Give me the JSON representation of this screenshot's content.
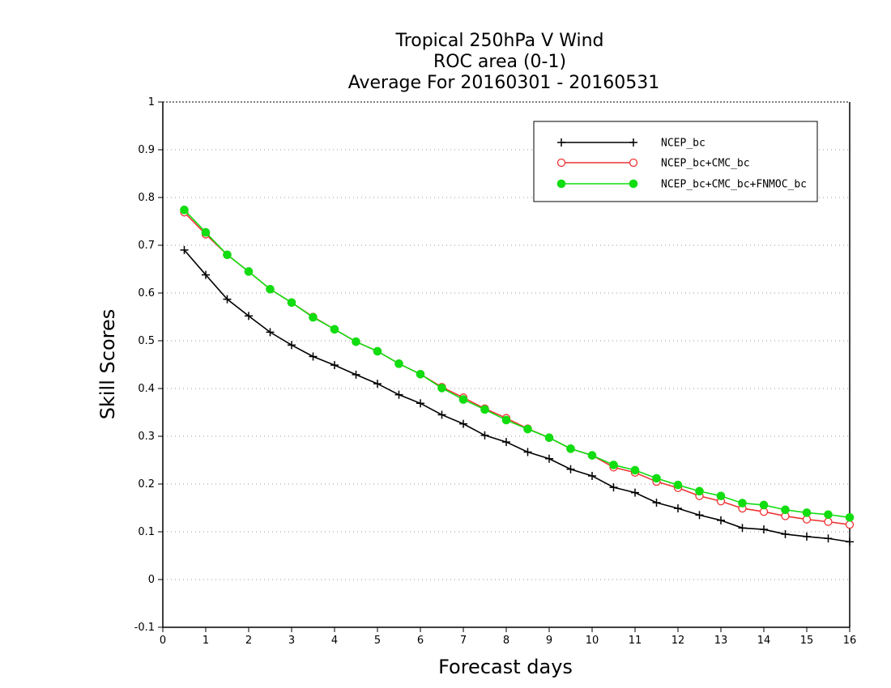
{
  "chart_data": {
    "type": "line",
    "title_lines": [
      "Tropical 250hPa V Wind",
      "ROC area (0-1)",
      "Average For 20160301 - 20160531"
    ],
    "xlabel": "Forecast days",
    "ylabel": "Skill Scores",
    "xlim": [
      0,
      16
    ],
    "ylim": [
      -0.1,
      1
    ],
    "x_ticks": [
      0,
      1,
      2,
      3,
      4,
      5,
      6,
      7,
      8,
      9,
      10,
      11,
      12,
      13,
      14,
      15,
      16
    ],
    "y_ticks": [
      -0.1,
      0,
      0.1,
      0.2,
      0.3,
      0.4,
      0.5,
      0.6,
      0.7,
      0.8,
      0.9,
      1
    ],
    "y_tick_labels": [
      "-0.1",
      "0",
      "0.1",
      "0.2",
      "0.3",
      "0.4",
      "0.5",
      "0.6",
      "0.7",
      "0.8",
      "0.9",
      "1"
    ],
    "grid": "horizontal dotted",
    "legend_position": "top-right",
    "x": [
      0.5,
      1,
      1.5,
      2,
      2.5,
      3,
      3.5,
      4,
      4.5,
      5,
      5.5,
      6,
      6.5,
      7,
      7.5,
      8,
      8.5,
      9,
      9.5,
      10,
      10.5,
      11,
      11.5,
      12,
      12.5,
      13,
      13.5,
      14,
      14.5,
      15,
      15.5,
      16
    ],
    "series": [
      {
        "name": "NCEP_bc",
        "color": "#000000",
        "marker": "plus",
        "values": [
          0.69,
          0.638,
          0.587,
          0.552,
          0.518,
          0.491,
          0.467,
          0.449,
          0.429,
          0.41,
          0.387,
          0.369,
          0.345,
          0.326,
          0.302,
          0.288,
          0.267,
          0.253,
          0.231,
          0.217,
          0.193,
          0.182,
          0.161,
          0.149,
          0.135,
          0.124,
          0.108,
          0.105,
          0.095,
          0.09,
          0.086,
          0.079
        ]
      },
      {
        "name": "NCEP_bc+CMC_bc",
        "color": "#ee3333",
        "marker": "open-circle",
        "values": [
          0.769,
          0.723,
          0.68,
          0.645,
          0.608,
          0.58,
          0.55,
          0.524,
          0.498,
          0.478,
          0.452,
          0.43,
          0.403,
          0.381,
          0.358,
          0.338,
          0.316,
          0.297,
          0.274,
          0.26,
          0.235,
          0.224,
          0.205,
          0.192,
          0.175,
          0.164,
          0.149,
          0.142,
          0.133,
          0.126,
          0.121,
          0.115
        ]
      },
      {
        "name": "NCEP_bc+CMC_bc+FNMOC_bc",
        "color": "#11dd11",
        "marker": "filled-circle",
        "values": [
          0.774,
          0.727,
          0.68,
          0.645,
          0.608,
          0.58,
          0.549,
          0.524,
          0.498,
          0.478,
          0.452,
          0.43,
          0.401,
          0.377,
          0.356,
          0.334,
          0.315,
          0.297,
          0.274,
          0.26,
          0.24,
          0.229,
          0.212,
          0.198,
          0.185,
          0.175,
          0.16,
          0.156,
          0.146,
          0.14,
          0.136,
          0.13
        ]
      }
    ]
  }
}
